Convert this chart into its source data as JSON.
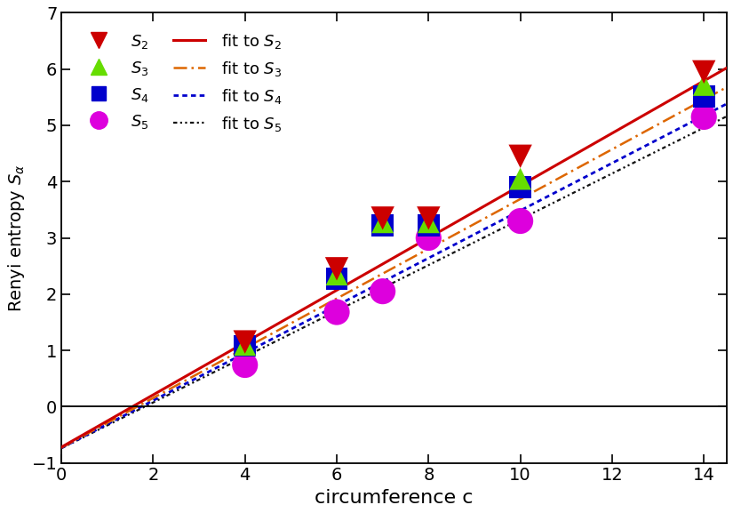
{
  "xlabel": "circumference c",
  "ylabel": "Renyi entropy $S_{\\alpha}$",
  "xlim": [
    0,
    14.5
  ],
  "ylim": [
    -1,
    7
  ],
  "xticks": [
    0,
    2,
    4,
    6,
    8,
    10,
    12,
    14
  ],
  "yticks": [
    -1,
    0,
    1,
    2,
    3,
    4,
    5,
    6,
    7
  ],
  "hline_y": 0,
  "scatter": {
    "S2_x": [
      4,
      6,
      7,
      8,
      10,
      14
    ],
    "S2_y": [
      1.15,
      2.45,
      3.35,
      3.35,
      4.45,
      5.95
    ],
    "S3_x": [
      4,
      6,
      7,
      8,
      10,
      14
    ],
    "S3_y": [
      1.1,
      2.35,
      3.28,
      3.28,
      4.05,
      5.72
    ],
    "S4_x": [
      4,
      6,
      7,
      8,
      10,
      14
    ],
    "S4_y": [
      1.08,
      2.28,
      3.22,
      3.22,
      3.9,
      5.52
    ],
    "S5_x": [
      4,
      6,
      7,
      8,
      10,
      14
    ],
    "S5_y": [
      0.74,
      1.68,
      2.05,
      3.0,
      3.3,
      5.15
    ]
  },
  "fits": {
    "S2_slope": 0.465,
    "S2_intercept": -0.72,
    "S3_slope": 0.442,
    "S3_intercept": -0.73,
    "S4_slope": 0.422,
    "S4_intercept": -0.735,
    "S5_slope": 0.407,
    "S5_intercept": -0.74
  },
  "colors": {
    "S2": "#cc0000",
    "S3": "#66dd00",
    "S4": "#0000cc",
    "S5": "#dd00dd",
    "fit_S2": "#cc0000",
    "fit_S3": "#dd6600",
    "fit_S4": "#0000cc",
    "fit_S5": "#111111"
  },
  "legend_labels": {
    "S2": "$S_2$",
    "S3": "$S_3$",
    "S4": "$S_4$",
    "S5": "$S_5$",
    "fit_S2": "fit to $S_2$",
    "fit_S3": "fit to $S_3$",
    "fit_S4": "fit to $S_4$",
    "fit_S5": "fit to $S_5$"
  }
}
